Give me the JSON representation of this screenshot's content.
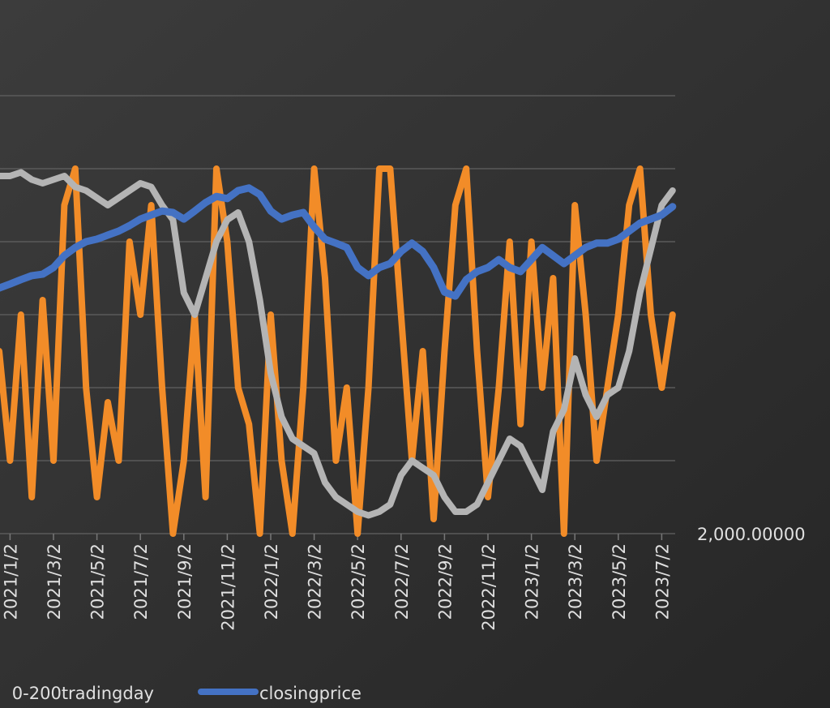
{
  "chart_data": {
    "type": "line",
    "categories": [
      null,
      "2021/1/2",
      null,
      null,
      null,
      "2021/3/2",
      null,
      null,
      null,
      "2021/5/2",
      null,
      null,
      null,
      "2021/7/2",
      null,
      null,
      null,
      "2021/9/2",
      null,
      null,
      null,
      "2021/11/2",
      null,
      null,
      null,
      "2022/1/2",
      null,
      null,
      null,
      "2022/3/2",
      null,
      null,
      null,
      "2022/5/2",
      null,
      null,
      null,
      "2022/7/2",
      null,
      null,
      null,
      "2022/9/2",
      null,
      null,
      null,
      "2022/11/2",
      null,
      null,
      null,
      "2023/1/2",
      null,
      null,
      null,
      "2023/3/2",
      null,
      null,
      null,
      "2023/5/2",
      null,
      null,
      null,
      "2023/7/2",
      null
    ],
    "series": [
      {
        "color": "#f28c28",
        "values": [
          2.5,
          1.0,
          3.0,
          0.5,
          3.2,
          1.0,
          4.5,
          5.0,
          2.0,
          0.5,
          1.8,
          1.0,
          4.0,
          3.0,
          4.5,
          2.0,
          0.0,
          1.0,
          3.0,
          0.5,
          5.0,
          4.0,
          2.0,
          1.5,
          0.0,
          3.0,
          1.0,
          0.0,
          2.0,
          5.0,
          3.5,
          1.0,
          2.0,
          0.0,
          2.0,
          5.0,
          5.0,
          3.0,
          1.0,
          2.5,
          0.2,
          2.5,
          4.5,
          5.0,
          2.5,
          0.5,
          2.0,
          4.0,
          1.5,
          4.0,
          2.0,
          3.5,
          0.0,
          4.5,
          3.0,
          1.0,
          2.0,
          3.0,
          4.5,
          5.0,
          3.0,
          2.0,
          3.0
        ]
      },
      {
        "name": "0-200tradingday",
        "color": "#b4b4b4",
        "values": [
          4.9,
          4.9,
          4.95,
          4.85,
          4.8,
          4.85,
          4.9,
          4.75,
          4.7,
          4.6,
          4.5,
          4.6,
          4.7,
          4.8,
          4.75,
          4.5,
          4.3,
          3.3,
          3.0,
          3.5,
          4.0,
          4.3,
          4.4,
          4.0,
          3.2,
          2.2,
          1.6,
          1.3,
          1.2,
          1.1,
          0.7,
          0.5,
          0.4,
          0.3,
          0.25,
          0.3,
          0.4,
          0.8,
          1.0,
          0.9,
          0.8,
          0.5,
          0.3,
          0.3,
          0.4,
          0.7,
          1.0,
          1.3,
          1.2,
          0.9,
          0.6,
          1.4,
          1.7,
          2.4,
          1.9,
          1.6,
          1.9,
          2.0,
          2.5,
          3.3,
          3.9,
          4.5,
          4.7
        ]
      },
      {
        "name": "closingprice",
        "color": "#4472c4",
        "axis": "y2",
        "values": [
          2673,
          2684,
          2696,
          2707,
          2711,
          2729,
          2762,
          2784,
          2800,
          2807,
          2818,
          2829,
          2844,
          2862,
          2873,
          2884,
          2880,
          2862,
          2884,
          2907,
          2924,
          2918,
          2940,
          2947,
          2929,
          2884,
          2862,
          2873,
          2880,
          2840,
          2807,
          2796,
          2784,
          2729,
          2707,
          2729,
          2740,
          2773,
          2796,
          2773,
          2729,
          2662,
          2651,
          2696,
          2718,
          2729,
          2751,
          2729,
          2718,
          2751,
          2784,
          2762,
          2740,
          2762,
          2784,
          2796,
          2796,
          2807,
          2829,
          2851,
          2862,
          2873,
          2896
        ]
      }
    ],
    "ylim": [
      0,
      6
    ],
    "yticks": [
      0,
      1,
      2,
      3,
      4,
      5,
      6
    ],
    "y2lim": [
      2000,
      3200
    ],
    "y2ticks": [
      {
        "value": 2000,
        "label": "2,000.00000"
      }
    ],
    "grid": true
  }
}
